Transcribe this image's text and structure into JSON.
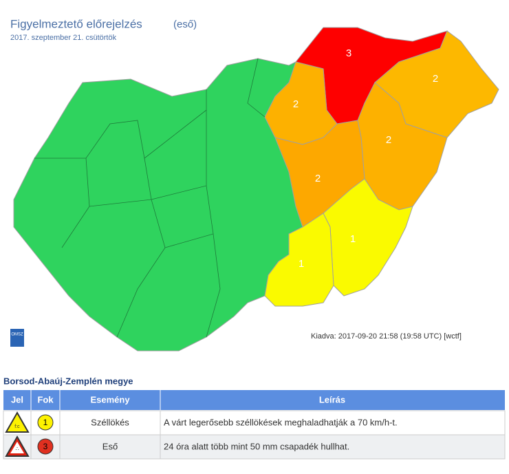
{
  "header": {
    "title": "Figyelmeztető előrejelzés",
    "subtitle": "(eső)",
    "date": "2017. szeptember 21. csütörtök"
  },
  "map": {
    "regions": [
      {
        "label": "3"
      },
      {
        "label": "2"
      },
      {
        "label": "2"
      },
      {
        "label": "2"
      },
      {
        "label": "2"
      },
      {
        "label": "1"
      },
      {
        "label": "1"
      }
    ],
    "logo": "OMSZ",
    "issued": "Kiadva: 2017-09-20 21:58 (19:58 UTC) [wctf]"
  },
  "county": "Borsod-Abaúj-Zemplén megye",
  "table": {
    "headers": [
      "Jel",
      "Fok",
      "Esemény",
      "Leírás"
    ],
    "rows": [
      {
        "level": "1",
        "event": "Széllökés",
        "description": "A várt legerősebb széllökések meghaladhatják a 70 km/h-t."
      },
      {
        "level": "3",
        "event": "Eső",
        "description": "24 óra alatt több mint 50 mm csapadék hullhat."
      }
    ]
  }
}
